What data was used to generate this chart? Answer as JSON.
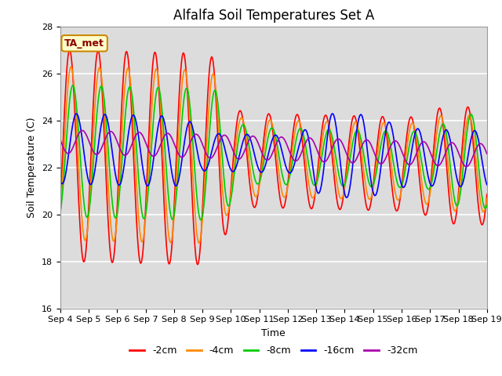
{
  "title": "Alfalfa Soil Temperatures Set A",
  "xlabel": "Time",
  "ylabel": "Soil Temperature (C)",
  "ylim": [
    16,
    28
  ],
  "xlim": [
    0,
    15
  ],
  "x_tick_labels": [
    "Sep 4",
    "Sep 5",
    "Sep 6",
    "Sep 7",
    "Sep 8",
    "Sep 9",
    "Sep 10",
    "Sep 11",
    "Sep 12",
    "Sep 13",
    "Sep 14",
    "Sep 15",
    "Sep 16",
    "Sep 17",
    "Sep 18",
    "Sep 19"
  ],
  "bg_color": "#dcdcdc",
  "fig_color": "#ffffff",
  "annotation_text": "TA_met",
  "annotation_bg": "#ffffcc",
  "annotation_border": "#cc8800",
  "legend_labels": [
    "-2cm",
    "-4cm",
    "-8cm",
    "-16cm",
    "-32cm"
  ],
  "line_colors": [
    "#ff0000",
    "#ff8800",
    "#00cc00",
    "#0000ff",
    "#aa00aa"
  ],
  "line_widths": [
    1.2,
    1.2,
    1.2,
    1.2,
    1.2
  ],
  "title_fontsize": 12,
  "label_fontsize": 9,
  "tick_fontsize": 8
}
